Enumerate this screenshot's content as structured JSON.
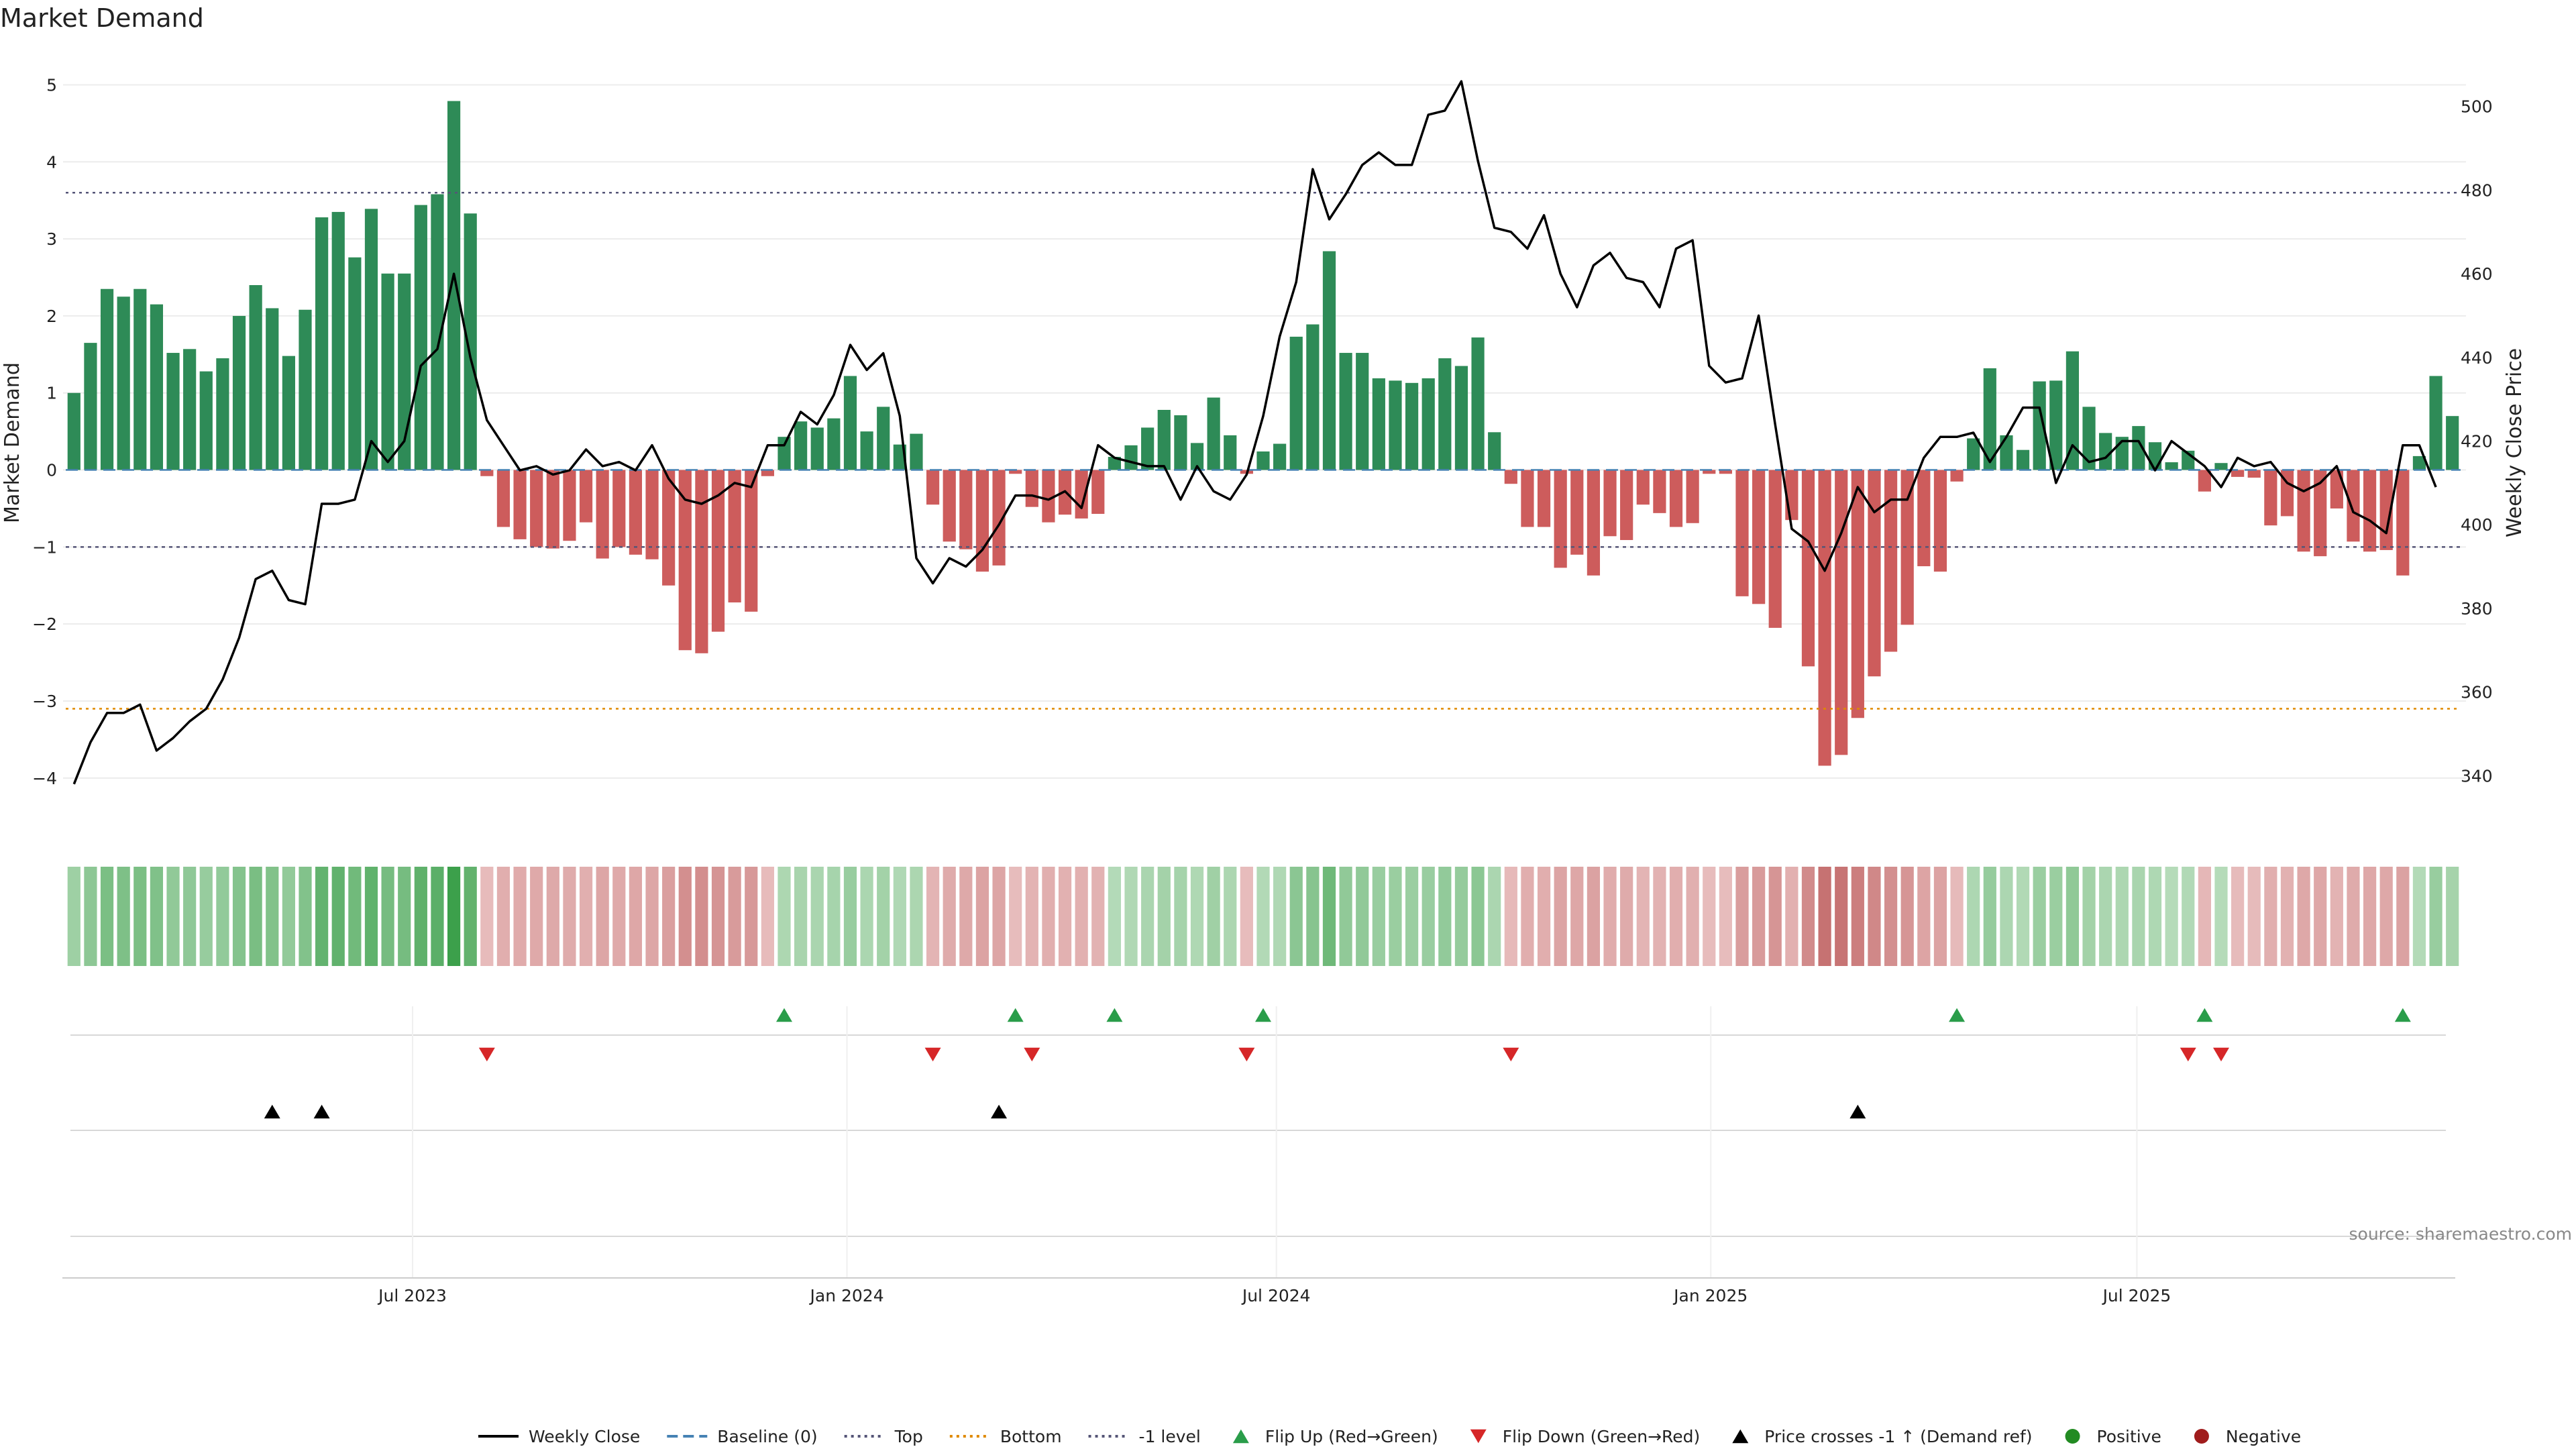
{
  "chart_data": {
    "type": "bar",
    "title": "Market Demand",
    "ylabel": "Market Demand",
    "y2label": "Weekly Close Price",
    "ylim": [
      -4.35,
      5.1
    ],
    "y2lim": [
      333,
      507
    ],
    "yticks": [
      -4,
      -3,
      -2,
      -1,
      0,
      1,
      2,
      3,
      4,
      5
    ],
    "y2ticks": [
      340,
      360,
      380,
      400,
      420,
      440,
      460,
      480,
      500
    ],
    "x_ticks": [
      {
        "index": 21,
        "label": "Jul 2023"
      },
      {
        "index": 47.3,
        "label": "Jan 2024"
      },
      {
        "index": 73.3,
        "label": "Jul 2024"
      },
      {
        "index": 99.6,
        "label": "Jan 2025"
      },
      {
        "index": 125.4,
        "label": "Jul 2025"
      }
    ],
    "reference_lines": {
      "top": 3.6,
      "bottom": -3.1,
      "minus_one": -1,
      "baseline": 0
    },
    "demand": [
      1.0,
      1.65,
      2.35,
      2.25,
      2.35,
      2.15,
      1.52,
      1.57,
      1.28,
      1.45,
      2.0,
      2.4,
      2.1,
      1.48,
      2.08,
      3.28,
      3.35,
      2.76,
      3.39,
      2.55,
      2.55,
      3.44,
      3.58,
      4.79,
      3.33,
      -0.08,
      -0.74,
      -0.9,
      -1.0,
      -1.02,
      -0.92,
      -0.68,
      -1.15,
      -1.0,
      -1.1,
      -1.16,
      -1.5,
      -2.34,
      -2.38,
      -2.1,
      -1.72,
      -1.84,
      -0.08,
      0.43,
      0.63,
      0.55,
      0.67,
      1.22,
      0.5,
      0.82,
      0.33,
      0.47,
      -0.45,
      -0.93,
      -1.03,
      -1.32,
      -1.24,
      -0.05,
      -0.48,
      -0.68,
      -0.58,
      -0.63,
      -0.57,
      0.17,
      0.32,
      0.55,
      0.78,
      0.71,
      0.35,
      0.94,
      0.45,
      -0.05,
      0.24,
      0.34,
      1.73,
      1.89,
      2.84,
      1.52,
      1.52,
      1.19,
      1.16,
      1.13,
      1.19,
      1.45,
      1.35,
      1.72,
      0.49,
      -0.18,
      -0.74,
      -0.74,
      -1.27,
      -1.1,
      -1.37,
      -0.86,
      -0.91,
      -0.45,
      -0.56,
      -0.74,
      -0.69,
      -0.05,
      -0.05,
      -1.64,
      -1.74,
      -2.05,
      -0.65,
      -2.55,
      -3.84,
      -3.7,
      -3.22,
      -2.68,
      -2.36,
      -2.01,
      -1.25,
      -1.32,
      -0.15,
      0.41,
      1.32,
      0.45,
      0.26,
      1.15,
      1.16,
      1.54,
      0.82,
      0.48,
      0.43,
      0.57,
      0.36,
      0.1,
      0.25,
      -0.28,
      0.09,
      -0.09,
      -0.1,
      -0.72,
      -0.6,
      -1.06,
      -1.12,
      -0.5,
      -0.93,
      -1.06,
      -1.04,
      -1.37,
      0.18,
      1.22,
      0.7
    ],
    "weekly_close": [
      338,
      348,
      355,
      355,
      357,
      346,
      349,
      353,
      356,
      363,
      373,
      387,
      389,
      382,
      381,
      405,
      405,
      406,
      420,
      415,
      420,
      438,
      442,
      460,
      440,
      425,
      419,
      413,
      414,
      412,
      413,
      418,
      414,
      415,
      413,
      419,
      411,
      406,
      405,
      407,
      410,
      409,
      419,
      419,
      427,
      424,
      431,
      443,
      437,
      441,
      426,
      392,
      386,
      392,
      390,
      394,
      400,
      407,
      407,
      406,
      408,
      404,
      419,
      416,
      415,
      414,
      414,
      406,
      414,
      408,
      406,
      412,
      426,
      445,
      458,
      485,
      473,
      479,
      486,
      489,
      486,
      486,
      498,
      499,
      506,
      487,
      471,
      470,
      466,
      474,
      460,
      452,
      462,
      465,
      459,
      458,
      452,
      466,
      468,
      438,
      434,
      435,
      450,
      424,
      399,
      396,
      389,
      398,
      409,
      403,
      406,
      406,
      416,
      421,
      421,
      422,
      415,
      421,
      428,
      428,
      410,
      419,
      415,
      416,
      420,
      420,
      413,
      420,
      417,
      414,
      409,
      416,
      414,
      415,
      410,
      408,
      410,
      414,
      403,
      401,
      398,
      419,
      419,
      409
    ],
    "heat_strip": "color intensity per week follows demand sign and magnitude",
    "flip_up_indices": [
      43,
      57,
      63,
      72,
      114,
      129,
      141
    ],
    "flip_down_indices": [
      25,
      52,
      58,
      71,
      87,
      128,
      130
    ],
    "price_cross_indices": [
      12,
      15,
      56,
      108
    ],
    "legend": [
      {
        "label": "Weekly Close",
        "kind": "line-solid",
        "color": "#000000"
      },
      {
        "label": "Baseline (0)",
        "kind": "line-dash",
        "color": "#4682b4"
      },
      {
        "label": "Top",
        "kind": "line-dot",
        "color": "#555577"
      },
      {
        "label": "Bottom",
        "kind": "line-dot",
        "color": "#e08a00"
      },
      {
        "label": "-1 level",
        "kind": "line-dot",
        "color": "#555577"
      },
      {
        "label": "Flip Up (Red→Green)",
        "kind": "tri-up",
        "color": "#2a9d4a"
      },
      {
        "label": "Flip Down (Green→Red)",
        "kind": "tri-down",
        "color": "#d62728"
      },
      {
        "label": "Price crosses -1 ↑ (Demand ref)",
        "kind": "tri-up",
        "color": "#000000"
      },
      {
        "label": "Positive",
        "kind": "dot",
        "color": "#228b22"
      },
      {
        "label": "Negative",
        "kind": "dot",
        "color": "#a01c1c"
      }
    ],
    "colors": {
      "positive_bar": "#2e8b57",
      "negative_bar": "#cd5c5c",
      "top": "#555577",
      "bottom": "#e08a00",
      "baseline": "#4682b4",
      "grid": "#ececec"
    }
  },
  "source_text": "source: sharemaestro.com"
}
